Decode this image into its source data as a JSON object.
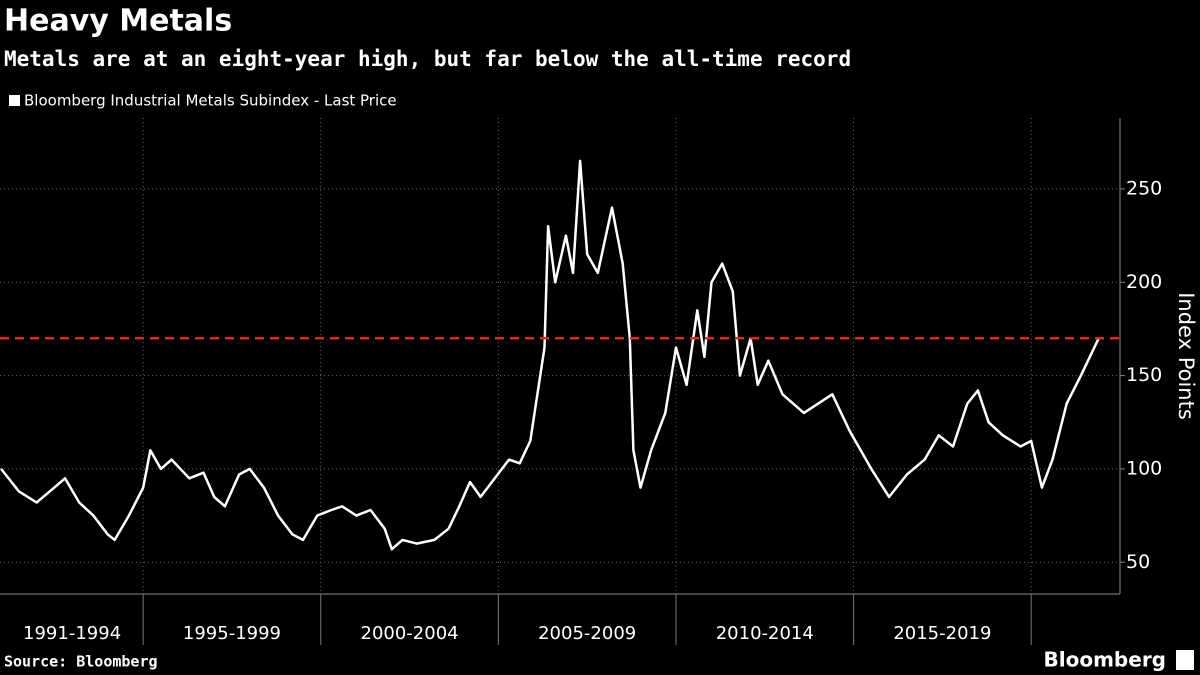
{
  "chart_data": {
    "type": "line",
    "title": "Heavy Metals",
    "subtitle": "Metals are at an eight-year high, but far below the all-time record",
    "y_label": "Index Points",
    "source": "Source: Bloomberg",
    "brand": "Bloomberg",
    "x_periods": [
      {
        "label": "1991-1994",
        "start": 1991,
        "end": 1995
      },
      {
        "label": "1995-1999",
        "start": 1995,
        "end": 2000
      },
      {
        "label": "2000-2004",
        "start": 2000,
        "end": 2005
      },
      {
        "label": "2005-2009",
        "start": 2005,
        "end": 2010
      },
      {
        "label": "2010-2014",
        "start": 2010,
        "end": 2015
      },
      {
        "label": "2015-2019",
        "start": 2015,
        "end": 2020
      }
    ],
    "x_boundaries": [
      1995,
      2000,
      2005,
      2010,
      2015,
      2020
    ],
    "xlim": [
      1990.97,
      2022.5
    ],
    "ylim": [
      33,
      288
    ],
    "yticks": [
      50,
      100,
      150,
      200,
      250
    ],
    "grid": true,
    "reference_line": {
      "value": 170,
      "color": "#e0252b"
    },
    "x": [
      1991.0,
      1991.5,
      1992.0,
      1992.5,
      1992.8,
      1993.2,
      1993.6,
      1994.0,
      1994.2,
      1994.6,
      1995.0,
      1995.2,
      1995.5,
      1995.8,
      1996.3,
      1996.7,
      1997.0,
      1997.3,
      1997.7,
      1998.0,
      1998.4,
      1998.8,
      1999.2,
      1999.5,
      1999.9,
      2000.3,
      2000.6,
      2001.0,
      2001.4,
      2001.8,
      2002.0,
      2002.3,
      2002.7,
      2003.2,
      2003.6,
      2003.9,
      2004.2,
      2004.5,
      2004.9,
      2005.3,
      2005.6,
      2005.9,
      2006.3,
      2006.4,
      2006.6,
      2006.9,
      2007.1,
      2007.3,
      2007.5,
      2007.8,
      2008.2,
      2008.5,
      2008.7,
      2008.8,
      2009.0,
      2009.3,
      2009.7,
      2010.0,
      2010.3,
      2010.6,
      2010.8,
      2011.0,
      2011.3,
      2011.6,
      2011.8,
      2012.1,
      2012.3,
      2012.6,
      2013.0,
      2013.6,
      2014.4,
      2014.9,
      2015.5,
      2016.0,
      2016.5,
      2017.0,
      2017.4,
      2017.8,
      2018.2,
      2018.5,
      2018.8,
      2019.2,
      2019.7,
      2020.0,
      2020.3,
      2020.6,
      2021.0,
      2021.4,
      2021.7,
      2021.9
    ],
    "series": [
      {
        "name": "Bloomberg Industrial Metals Subindex - Last Price",
        "color": "#ffffff",
        "values": [
          100,
          88,
          82,
          90,
          95,
          82,
          75,
          65,
          62,
          75,
          90,
          110,
          100,
          105,
          95,
          98,
          85,
          80,
          97,
          100,
          90,
          75,
          65,
          62,
          75,
          78,
          80,
          75,
          78,
          68,
          57,
          62,
          60,
          62,
          68,
          80,
          93,
          85,
          95,
          105,
          103,
          115,
          165,
          230,
          200,
          225,
          205,
          265,
          215,
          205,
          240,
          210,
          170,
          110,
          90,
          110,
          130,
          165,
          145,
          185,
          160,
          200,
          210,
          195,
          150,
          170,
          145,
          158,
          140,
          130,
          140,
          120,
          100,
          85,
          97,
          105,
          118,
          112,
          135,
          142,
          125,
          118,
          112,
          115,
          90,
          105,
          135,
          150,
          162,
          170
        ]
      }
    ]
  }
}
